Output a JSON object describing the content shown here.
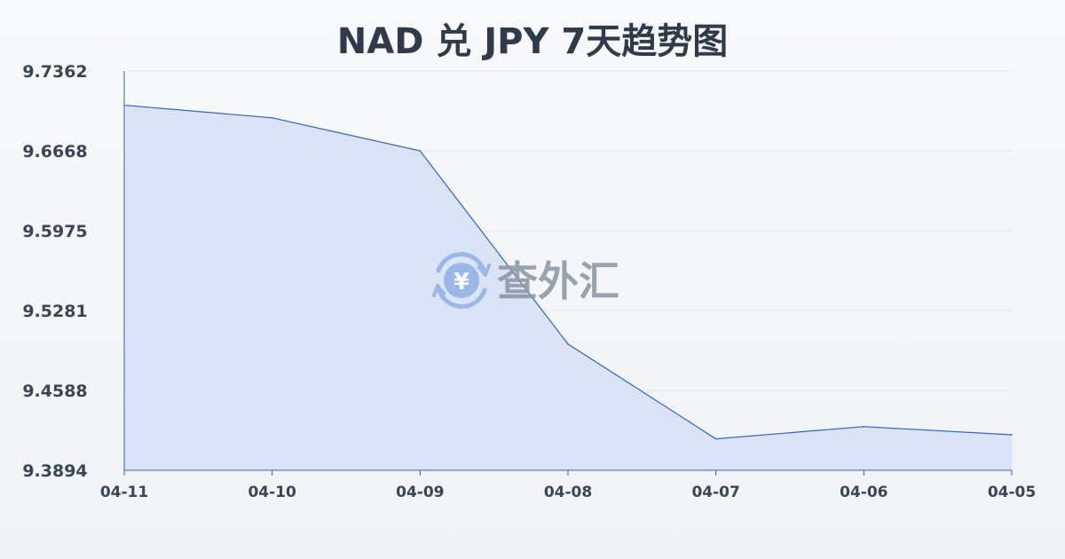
{
  "chart_data": {
    "type": "area",
    "title": "NAD 兑 JPY 7天趋势图",
    "xlabel": "",
    "ylabel": "",
    "categories": [
      "04-11",
      "04-10",
      "04-09",
      "04-08",
      "04-07",
      "04-06",
      "04-05"
    ],
    "series": [
      {
        "values": [
          9.7065,
          9.6955,
          9.6668,
          9.499,
          9.4167,
          9.4273,
          9.4202
        ]
      }
    ],
    "y_ticks": [
      "9.7362",
      "9.6668",
      "9.5975",
      "9.5281",
      "9.4588",
      "9.3894"
    ],
    "ylim": [
      9.3894,
      9.7362
    ],
    "grid": true,
    "legend": "none",
    "colors": {
      "line": "#2f63c8",
      "fill": "#d9e3f6",
      "grid": "#e3e6ea",
      "axis": "#2f63c8",
      "text": "#3a4556",
      "title": "#2f3a4b"
    }
  },
  "watermark": {
    "text": "查外汇",
    "icon": "yen-exchange-icon",
    "icon_glyph": "¥",
    "color": "#8fb0e6",
    "text_color": "#8a94a3"
  }
}
